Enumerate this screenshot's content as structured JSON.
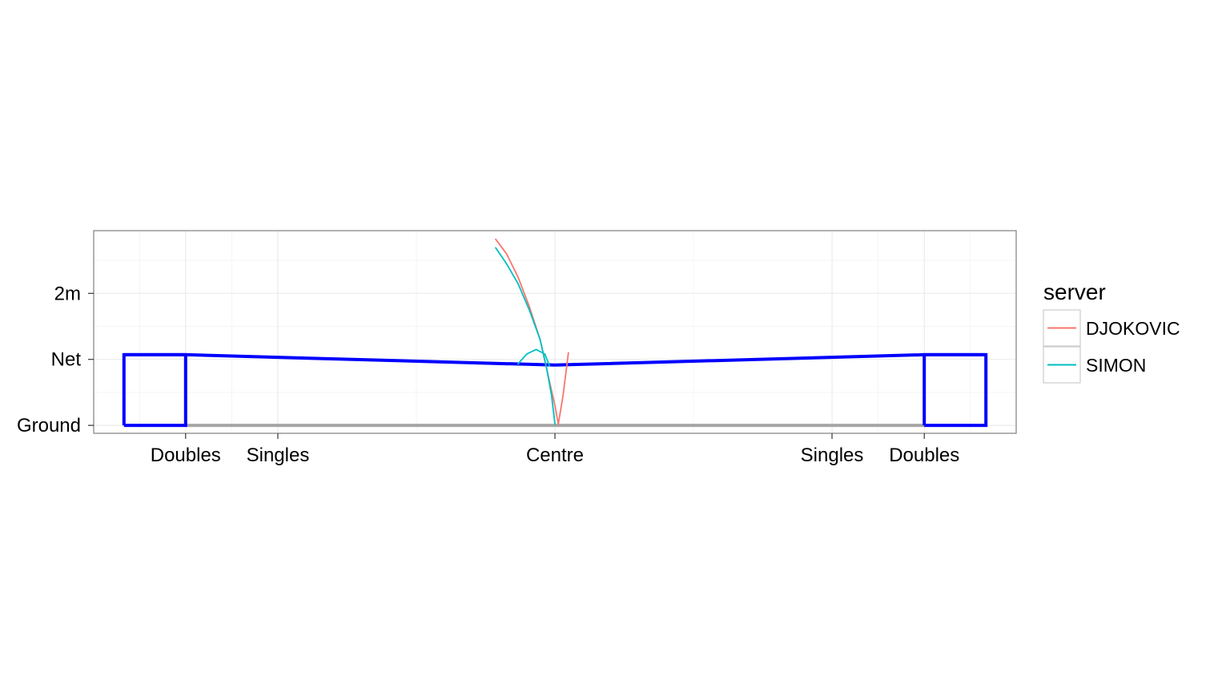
{
  "colors": {
    "panel_bg": "#ffffff",
    "panel_border": "#7f7f7f",
    "grid_major": "#ebebeb",
    "grid_minor": "#f5f5f5",
    "net_outline": "#0000ff",
    "ground_line": "#a6a6a6",
    "legend_key_border": "#cccccc"
  },
  "chart_data": {
    "type": "line",
    "title": "",
    "xlabel": "",
    "ylabel": "",
    "xlim": [
      -6.85,
      6.85
    ],
    "ylim": [
      -0.12,
      2.95
    ],
    "x_ticks": [
      {
        "value": -5.485,
        "label": "Doubles"
      },
      {
        "value": -4.115,
        "label": "Singles"
      },
      {
        "value": 0,
        "label": "Centre"
      },
      {
        "value": 4.115,
        "label": "Singles"
      },
      {
        "value": 5.485,
        "label": "Doubles"
      }
    ],
    "y_ticks": [
      {
        "value": 0,
        "label": "Ground"
      },
      {
        "value": 1.0,
        "label": "Net"
      },
      {
        "value": 2.0,
        "label": "2m"
      }
    ],
    "legend": {
      "title": "server",
      "position": "right",
      "entries": [
        {
          "label": "DJOKOVIC",
          "color": "#F8766D"
        },
        {
          "label": "SIMON",
          "color": "#00BFC4"
        }
      ]
    },
    "net": {
      "color": "#0000ff",
      "outline": [
        [
          -6.4,
          0
        ],
        [
          -6.4,
          1.07
        ],
        [
          -5.485,
          1.07
        ],
        [
          -5.485,
          0
        ],
        [
          -6.4,
          0
        ]
      ],
      "top": [
        [
          -6.4,
          1.07
        ],
        [
          -5.485,
          1.07
        ],
        [
          0,
          0.914
        ],
        [
          5.485,
          1.07
        ],
        [
          6.4,
          1.07
        ]
      ],
      "right_post": [
        [
          5.485,
          0
        ],
        [
          5.485,
          1.07
        ],
        [
          6.4,
          1.07
        ],
        [
          6.4,
          0
        ],
        [
          5.485,
          0
        ]
      ]
    },
    "ground": {
      "x": [
        -5.485,
        5.485
      ],
      "y": 0,
      "color": "#a6a6a6"
    },
    "series": [
      {
        "name": "DJOKOVIC",
        "color": "#F8766D",
        "segments": [
          [
            [
              -0.88,
              2.82
            ],
            [
              -0.72,
              2.6
            ],
            [
              -0.55,
              2.25
            ],
            [
              -0.38,
              1.8
            ],
            [
              -0.22,
              1.3
            ],
            [
              -0.1,
              0.75
            ],
            [
              0,
              0.3
            ],
            [
              0.05,
              0.02
            ]
          ],
          [
            [
              0.05,
              0.02
            ],
            [
              0.12,
              0.45
            ],
            [
              0.2,
              1.1
            ]
          ]
        ]
      },
      {
        "name": "SIMON",
        "color": "#00BFC4",
        "segments": [
          [
            [
              -0.88,
              2.69
            ],
            [
              -0.72,
              2.45
            ],
            [
              -0.55,
              2.15
            ],
            [
              -0.38,
              1.75
            ],
            [
              -0.22,
              1.3
            ],
            [
              -0.12,
              0.85
            ],
            [
              -0.05,
              0.45
            ],
            [
              0,
              0.02
            ]
          ],
          [
            [
              -0.55,
              0.93
            ],
            [
              -0.42,
              1.08
            ],
            [
              -0.28,
              1.15
            ],
            [
              -0.15,
              1.08
            ],
            [
              -0.08,
              0.9
            ]
          ]
        ]
      }
    ],
    "grid": true
  }
}
